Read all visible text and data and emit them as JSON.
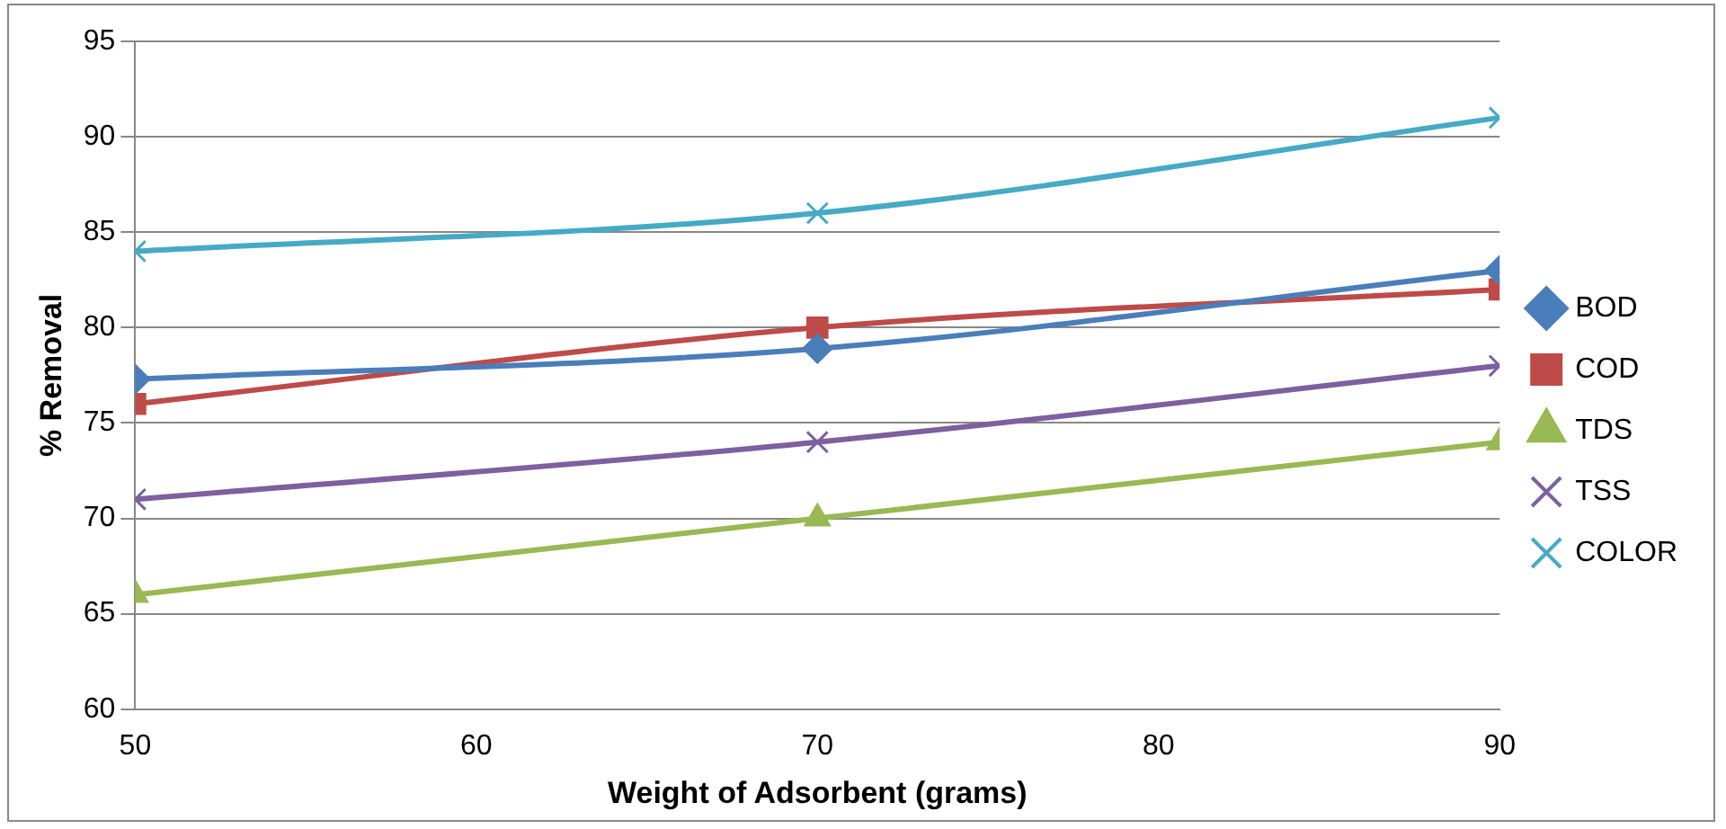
{
  "chart_data": {
    "type": "line",
    "xlabel": "Weight of Adsorbent (grams)",
    "ylabel": "% Removal",
    "x": [
      50,
      70,
      90
    ],
    "xlim": [
      50,
      90
    ],
    "xticks": [
      50,
      60,
      70,
      80,
      90
    ],
    "ylim": [
      60,
      95
    ],
    "yticks": [
      60,
      65,
      70,
      75,
      80,
      85,
      90,
      95
    ],
    "grid": "y",
    "legend": "right",
    "series": [
      {
        "name": "BOD",
        "color": "#4a7ebb",
        "marker": "diamond",
        "values": [
          77.3,
          78.9,
          83
        ]
      },
      {
        "name": "COD",
        "color": "#be4b48",
        "marker": "square",
        "values": [
          76,
          80,
          82
        ]
      },
      {
        "name": "TDS",
        "color": "#98b954",
        "marker": "triangle",
        "values": [
          66,
          70,
          74
        ]
      },
      {
        "name": "TSS",
        "color": "#7d60a0",
        "marker": "cross",
        "values": [
          71,
          74,
          78
        ]
      },
      {
        "name": "COLOR",
        "color": "#46aac5",
        "marker": "cross",
        "values": [
          84,
          86,
          91
        ]
      }
    ]
  }
}
